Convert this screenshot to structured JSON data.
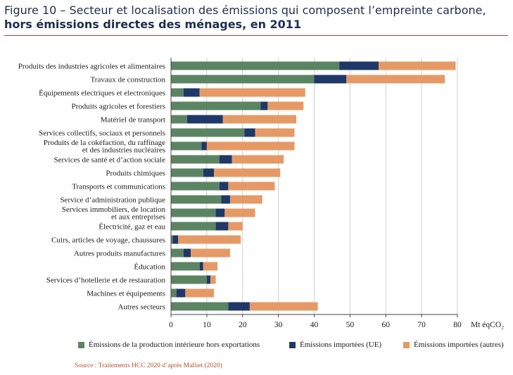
{
  "title": {
    "line1": "Figure 10 – Secteur et localisation des émissions qui composent l’empreinte carbone,",
    "line2": "hors émissions directes des ménages, en 2011"
  },
  "colors": {
    "series": [
      "#5b8463",
      "#1f3868",
      "#e59a66"
    ],
    "gridline": "#cfcfcf",
    "rule": "#c9303a"
  },
  "chart_data": {
    "type": "bar",
    "orientation": "horizontal",
    "stacked": true,
    "unit": "Mt éqCO₂",
    "xlim": [
      0,
      80
    ],
    "xticks": [
      0,
      10,
      20,
      30,
      40,
      50,
      60,
      70,
      80
    ],
    "grid": true,
    "legend_position": "bottom",
    "categories": [
      [
        "Produits des industries agricoles et alimentaires"
      ],
      [
        "Travaux de construction"
      ],
      [
        "Équipements electriques et electroniques"
      ],
      [
        "Produits agricoles et forestiers"
      ],
      [
        "Matériel de transport"
      ],
      [
        "Services collectifs, sociaux et personnels"
      ],
      [
        "Produits de la cokéfaction, du raffinage",
        "et des industries nucléaires"
      ],
      [
        "Services de santé et d’action sociale"
      ],
      [
        "Produits chimiques"
      ],
      [
        "Transports et communications"
      ],
      [
        "Service d’administration publique"
      ],
      [
        "Services immobiliers, de location",
        "et aux entreprises"
      ],
      [
        "Électricité, gaz et eau"
      ],
      [
        "Cuirs, articles de voyage, chaussures"
      ],
      [
        "Autres produits manufactures"
      ],
      [
        "Éducation"
      ],
      [
        "Services d’hotellerie et de restauration"
      ],
      [
        "Machines et équipements"
      ],
      [
        "Autres secteurs"
      ]
    ],
    "series": [
      {
        "name": "Émissions de la production intérieure hors exportations",
        "values": [
          47,
          40,
          3.5,
          25,
          4.5,
          20.5,
          8.5,
          13.5,
          9,
          13.5,
          14,
          12.5,
          12.5,
          0.5,
          3.5,
          8,
          10,
          1.5,
          16
        ]
      },
      {
        "name": "Émissions importées (UE)",
        "values": [
          11,
          9,
          4.5,
          2,
          10,
          3,
          1.5,
          3.5,
          3,
          2.5,
          2.5,
          2.5,
          3.5,
          1.5,
          2,
          1,
          1,
          2.5,
          6
        ]
      },
      {
        "name": "Émissions importées (autres)",
        "values": [
          21.5,
          27.5,
          29.5,
          10,
          20.5,
          11,
          24.5,
          14.5,
          18.5,
          13,
          9,
          8.5,
          4,
          17.5,
          11,
          4,
          1.5,
          8,
          19
        ]
      }
    ]
  },
  "source": "Source : Traitements HCC 2020 d’après Malliet (2020)"
}
